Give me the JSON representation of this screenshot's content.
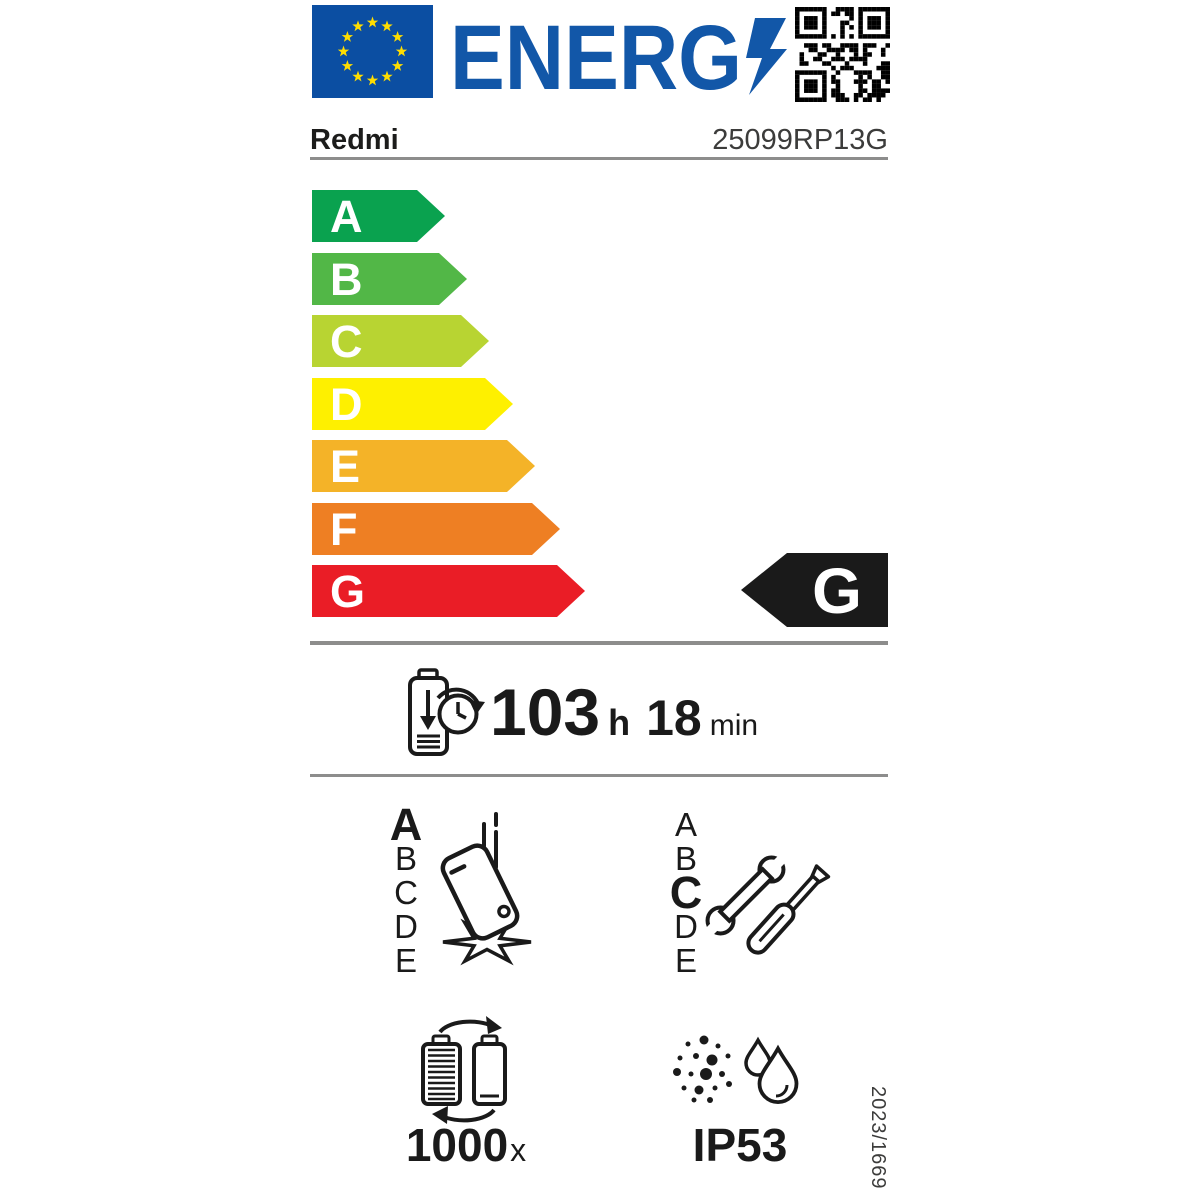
{
  "colors": {
    "blue": "#1257A8",
    "flag_blue": "#0B4EA2",
    "star_yellow": "#FFDD00",
    "black": "#1A1A1A",
    "divider_gray": "#8D8D8C"
  },
  "header": {
    "wordmark": "ENERG"
  },
  "product": {
    "brand": "Redmi",
    "model": "25099RP13G"
  },
  "scale": {
    "grades": [
      {
        "letter": "A",
        "color": "#0AA24F"
      },
      {
        "letter": "B",
        "color": "#52B747"
      },
      {
        "letter": "C",
        "color": "#B8D432"
      },
      {
        "letter": "D",
        "color": "#FEF000"
      },
      {
        "letter": "E",
        "color": "#F4B328"
      },
      {
        "letter": "F",
        "color": "#EE7F23"
      },
      {
        "letter": "G",
        "color": "#EA1D26"
      }
    ],
    "selected": "G"
  },
  "battery_life": {
    "hours": "103",
    "hours_unit": "h",
    "minutes": "18",
    "minutes_unit": "min"
  },
  "drop_resistance": {
    "grades": [
      "A",
      "B",
      "C",
      "D",
      "E"
    ],
    "selected": "A"
  },
  "repairability": {
    "grades": [
      "A",
      "B",
      "C",
      "D",
      "E"
    ],
    "selected": "C"
  },
  "battery_cycles": {
    "value": "1000",
    "unit": "x"
  },
  "ingress_protection": {
    "rating": "IP53"
  },
  "regulation": "2023/1669"
}
